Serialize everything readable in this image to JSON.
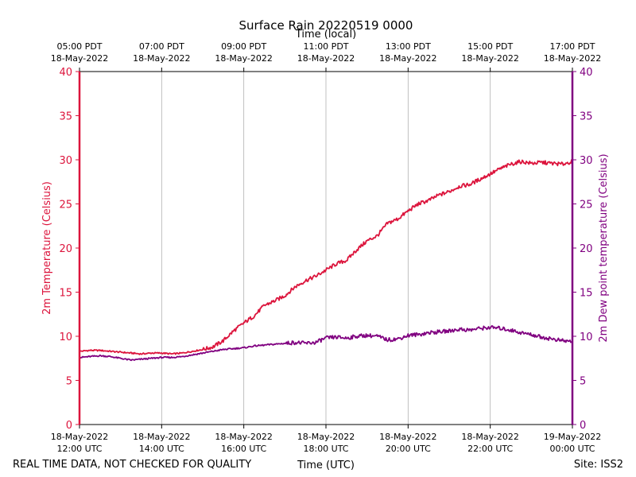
{
  "chart_data": {
    "type": "line",
    "title": "Surface Rain 20220519 0000",
    "top_axis_label": "Time (local)",
    "xlabel": "Time (UTC)",
    "ylabel_left": "2m Temperature (Celsius)",
    "ylabel_right": "2m Dew point temperature (Celsius)",
    "ylim": [
      0,
      40
    ],
    "y_ticks": [
      0,
      5,
      10,
      15,
      20,
      25,
      30,
      35,
      40
    ],
    "xlim_hours": [
      0,
      12
    ],
    "x_ticks_utc": [
      {
        "hour": 0,
        "date": "18-May-2022",
        "time": "12:00 UTC"
      },
      {
        "hour": 2,
        "date": "18-May-2022",
        "time": "14:00 UTC"
      },
      {
        "hour": 4,
        "date": "18-May-2022",
        "time": "16:00 UTC"
      },
      {
        "hour": 6,
        "date": "18-May-2022",
        "time": "18:00 UTC"
      },
      {
        "hour": 8,
        "date": "18-May-2022",
        "time": "20:00 UTC"
      },
      {
        "hour": 10,
        "date": "18-May-2022",
        "time": "22:00 UTC"
      },
      {
        "hour": 12,
        "date": "19-May-2022",
        "time": "00:00 UTC"
      }
    ],
    "x_ticks_local": [
      {
        "hour": 0,
        "time": "05:00 PDT",
        "date": "18-May-2022"
      },
      {
        "hour": 2,
        "time": "07:00 PDT",
        "date": "18-May-2022"
      },
      {
        "hour": 4,
        "time": "09:00 PDT",
        "date": "18-May-2022"
      },
      {
        "hour": 6,
        "time": "11:00 PDT",
        "date": "18-May-2022"
      },
      {
        "hour": 8,
        "time": "13:00 PDT",
        "date": "18-May-2022"
      },
      {
        "hour": 10,
        "time": "15:00 PDT",
        "date": "18-May-2022"
      },
      {
        "hour": 12,
        "time": "17:00 PDT",
        "date": "18-May-2022"
      }
    ],
    "grid": "vertical",
    "series": [
      {
        "name": "2m Temperature",
        "axis": "left",
        "color": "#dc143c",
        "x_hours": [
          0,
          0.25,
          0.5,
          0.75,
          1,
          1.25,
          1.5,
          1.75,
          2,
          2.25,
          2.5,
          2.75,
          3,
          3.25,
          3.5,
          3.75,
          4,
          4.25,
          4.5,
          4.75,
          5,
          5.25,
          5.5,
          5.75,
          6,
          6.25,
          6.5,
          6.75,
          7,
          7.25,
          7.5,
          7.75,
          8,
          8.25,
          8.5,
          8.75,
          9,
          9.25,
          9.5,
          9.75,
          10,
          10.25,
          10.5,
          10.75,
          11,
          11.25,
          11.5,
          11.75,
          12
        ],
        "values": [
          8.3,
          8.4,
          8.4,
          8.3,
          8.2,
          8.1,
          8.0,
          8.1,
          8.1,
          8.0,
          8.1,
          8.3,
          8.5,
          8.8,
          9.5,
          10.6,
          11.5,
          12.3,
          13.5,
          14.0,
          14.6,
          15.6,
          16.3,
          16.8,
          17.5,
          18.2,
          18.6,
          19.8,
          20.8,
          21.4,
          22.8,
          23.3,
          24.2,
          25.0,
          25.4,
          26.0,
          26.4,
          27.0,
          27.2,
          27.8,
          28.4,
          29.0,
          29.5,
          29.8,
          29.6,
          29.7,
          29.6,
          29.5,
          29.8
        ]
      },
      {
        "name": "2m Dew point temperature",
        "axis": "right",
        "color": "#800080",
        "x_hours": [
          0,
          0.25,
          0.5,
          0.75,
          1,
          1.25,
          1.5,
          1.75,
          2,
          2.25,
          2.5,
          2.75,
          3,
          3.25,
          3.5,
          3.75,
          4,
          4.25,
          4.5,
          4.75,
          5,
          5.25,
          5.5,
          5.75,
          6,
          6.25,
          6.5,
          6.75,
          7,
          7.25,
          7.5,
          7.75,
          8,
          8.25,
          8.5,
          8.75,
          9,
          9.25,
          9.5,
          9.75,
          10,
          10.25,
          10.5,
          10.75,
          11,
          11.25,
          11.5,
          11.75,
          12
        ],
        "values": [
          7.6,
          7.7,
          7.8,
          7.7,
          7.5,
          7.3,
          7.4,
          7.5,
          7.6,
          7.6,
          7.7,
          7.9,
          8.1,
          8.3,
          8.5,
          8.6,
          8.7,
          8.9,
          9.0,
          9.1,
          9.2,
          9.3,
          9.2,
          9.3,
          9.8,
          9.9,
          9.8,
          10.0,
          10.1,
          10.0,
          9.6,
          9.7,
          10.1,
          10.2,
          10.4,
          10.5,
          10.6,
          10.8,
          10.7,
          10.9,
          11.0,
          10.9,
          10.7,
          10.4,
          10.2,
          9.9,
          9.7,
          9.5,
          9.4
        ]
      }
    ]
  },
  "footer": {
    "quality_note": "REAL TIME DATA, NOT CHECKED FOR QUALITY",
    "site": "Site: ISS2"
  }
}
